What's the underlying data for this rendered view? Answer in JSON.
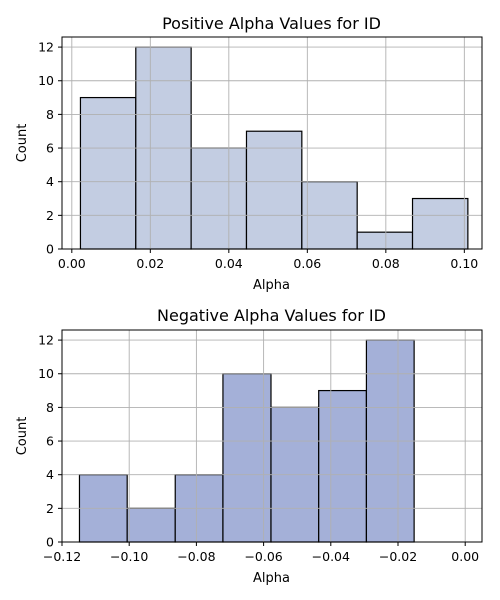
{
  "figure": {
    "background": "#ffffff"
  },
  "chart_data": [
    {
      "type": "bar",
      "title": "Positive Alpha Values for ID",
      "xlabel": "Alpha",
      "ylabel": "Count",
      "grid": true,
      "bar_color": "#c3cde2",
      "edge_color": "#000000",
      "xlim": [
        -0.0025,
        0.1045
      ],
      "ylim": [
        0,
        12.6
      ],
      "xticks": [
        0.0,
        0.02,
        0.04,
        0.06,
        0.08,
        0.1
      ],
      "xtick_labels": [
        "0.00",
        "0.02",
        "0.04",
        "0.06",
        "0.08",
        "0.10"
      ],
      "yticks": [
        0,
        2,
        4,
        6,
        8,
        10,
        12
      ],
      "ytick_labels": [
        "0",
        "2",
        "4",
        "6",
        "8",
        "10",
        "12"
      ],
      "bin_edges": [
        0.0022,
        0.0163,
        0.0304,
        0.0445,
        0.0586,
        0.0727,
        0.0868,
        0.1009
      ],
      "values": [
        9,
        12,
        6,
        7,
        4,
        1,
        3
      ]
    },
    {
      "type": "bar",
      "title": "Negative Alpha Values for ID",
      "xlabel": "Alpha",
      "ylabel": "Count",
      "grid": true,
      "bar_color": "#a4b0d8",
      "edge_color": "#000000",
      "xlim": [
        -0.12,
        0.005
      ],
      "ylim": [
        0,
        12.6
      ],
      "xticks": [
        -0.12,
        -0.1,
        -0.08,
        -0.06,
        -0.04,
        -0.02,
        0.0
      ],
      "xtick_labels": [
        "−0.12",
        "−0.10",
        "−0.08",
        "−0.06",
        "−0.04",
        "−0.02",
        "0.00"
      ],
      "yticks": [
        0,
        2,
        4,
        6,
        8,
        10,
        12
      ],
      "ytick_labels": [
        "0",
        "2",
        "4",
        "6",
        "8",
        "10",
        "12"
      ],
      "bin_edges": [
        -0.1148,
        -0.1006,
        -0.0863,
        -0.0721,
        -0.0578,
        -0.0436,
        -0.0294,
        -0.0152
      ],
      "values": [
        4,
        2,
        4,
        10,
        8,
        9,
        12
      ]
    }
  ]
}
